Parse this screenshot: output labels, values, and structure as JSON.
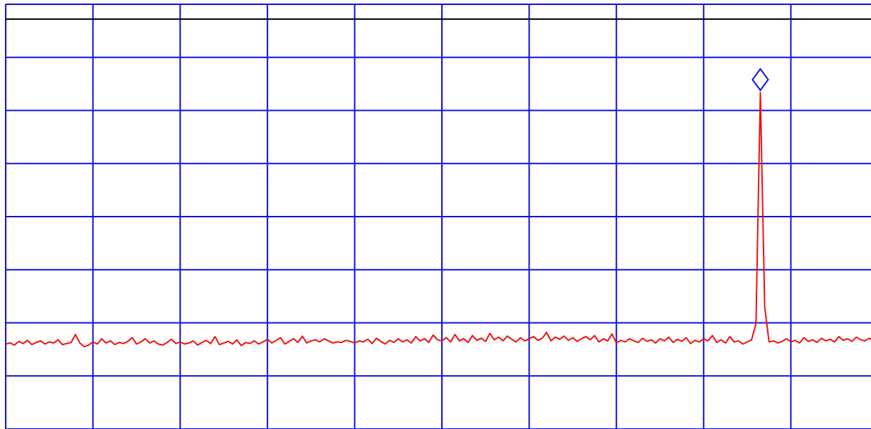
{
  "chart_data": {
    "type": "line",
    "xlim": [
      0,
      10
    ],
    "ylim": [
      0,
      8
    ],
    "xticks": [
      0,
      1,
      2,
      3,
      4,
      5,
      6,
      7,
      8,
      9,
      10
    ],
    "yticks": [
      0,
      1,
      2,
      3,
      4,
      5,
      6,
      7,
      8
    ],
    "grid": true,
    "grid_color": "#1010d8",
    "ref_level": 7.72,
    "ref_color": "#000000",
    "marker_index": 173,
    "marker_color": "#1010d8",
    "color": "#ee1111",
    "values": [
      1.6,
      1.62,
      1.58,
      1.65,
      1.61,
      1.67,
      1.59,
      1.63,
      1.66,
      1.6,
      1.64,
      1.62,
      1.68,
      1.59,
      1.61,
      1.63,
      1.78,
      1.62,
      1.55,
      1.58,
      1.64,
      1.6,
      1.7,
      1.62,
      1.66,
      1.59,
      1.63,
      1.61,
      1.65,
      1.72,
      1.6,
      1.64,
      1.7,
      1.62,
      1.66,
      1.6,
      1.58,
      1.63,
      1.69,
      1.61,
      1.64,
      1.6,
      1.62,
      1.66,
      1.58,
      1.63,
      1.67,
      1.61,
      1.74,
      1.59,
      1.62,
      1.65,
      1.6,
      1.68,
      1.57,
      1.63,
      1.61,
      1.66,
      1.6,
      1.64,
      1.69,
      1.62,
      1.67,
      1.72,
      1.6,
      1.65,
      1.7,
      1.63,
      1.75,
      1.62,
      1.66,
      1.68,
      1.64,
      1.7,
      1.66,
      1.62,
      1.64,
      1.63,
      1.67,
      1.65,
      1.62,
      1.66,
      1.64,
      1.69,
      1.61,
      1.71,
      1.65,
      1.6,
      1.67,
      1.63,
      1.7,
      1.64,
      1.68,
      1.62,
      1.74,
      1.66,
      1.7,
      1.63,
      1.77,
      1.68,
      1.66,
      1.72,
      1.64,
      1.78,
      1.66,
      1.7,
      1.63,
      1.76,
      1.67,
      1.71,
      1.65,
      1.8,
      1.68,
      1.73,
      1.66,
      1.75,
      1.69,
      1.64,
      1.72,
      1.66,
      1.7,
      1.74,
      1.67,
      1.71,
      1.82,
      1.66,
      1.73,
      1.69,
      1.75,
      1.67,
      1.72,
      1.65,
      1.7,
      1.74,
      1.68,
      1.76,
      1.64,
      1.7,
      1.66,
      1.79,
      1.62,
      1.67,
      1.64,
      1.7,
      1.66,
      1.63,
      1.71,
      1.65,
      1.68,
      1.62,
      1.7,
      1.66,
      1.73,
      1.63,
      1.69,
      1.65,
      1.72,
      1.61,
      1.67,
      1.64,
      1.7,
      1.66,
      1.76,
      1.63,
      1.68,
      1.62,
      1.74,
      1.64,
      1.66,
      1.6,
      1.64,
      1.68,
      1.99,
      6.34,
      2.3,
      1.64,
      1.66,
      1.62,
      1.65,
      1.7,
      1.64,
      1.67,
      1.62,
      1.72,
      1.65,
      1.68,
      1.63,
      1.71,
      1.66,
      1.69,
      1.64,
      1.74,
      1.67,
      1.7,
      1.65,
      1.73,
      1.68,
      1.66,
      1.71,
      1.64,
      1.69
    ]
  }
}
